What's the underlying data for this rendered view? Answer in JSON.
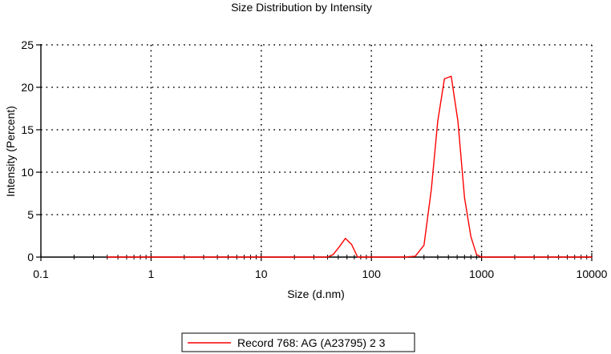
{
  "chart_data": {
    "type": "line",
    "title": "Size Distribution by Intensity",
    "xlabel": "Size (d.nm)",
    "ylabel": "Intensity (Percent)",
    "x_scale": "log",
    "xlim": [
      0.1,
      10000
    ],
    "ylim": [
      0,
      25
    ],
    "x_ticks": [
      0.1,
      1,
      10,
      100,
      1000,
      10000
    ],
    "x_tick_labels": [
      "0.1",
      "1",
      "10",
      "100",
      "1000",
      "10000"
    ],
    "y_ticks": [
      0,
      5,
      10,
      15,
      20,
      25
    ],
    "y_tick_labels": [
      "0",
      "5",
      "10",
      "15",
      "20",
      "25"
    ],
    "grid": true,
    "legend_position": "bottom-center",
    "series": [
      {
        "name": "Record 768: AG (A23795) 2 3",
        "color": "#ff0000",
        "x": [
          0.4,
          1,
          10,
          40,
          45,
          51,
          58,
          66,
          75,
          86,
          100,
          150,
          200,
          250,
          300,
          350,
          400,
          460,
          530,
          610,
          700,
          800,
          900,
          1000,
          2000,
          5000,
          10000
        ],
        "y": [
          0,
          0,
          0,
          0,
          0.3,
          1.2,
          2.2,
          1.5,
          0,
          0,
          0,
          0,
          0,
          0.1,
          1.4,
          8,
          16,
          21,
          21.3,
          16,
          7,
          2.4,
          0.3,
          0,
          0,
          0,
          0
        ]
      }
    ]
  }
}
